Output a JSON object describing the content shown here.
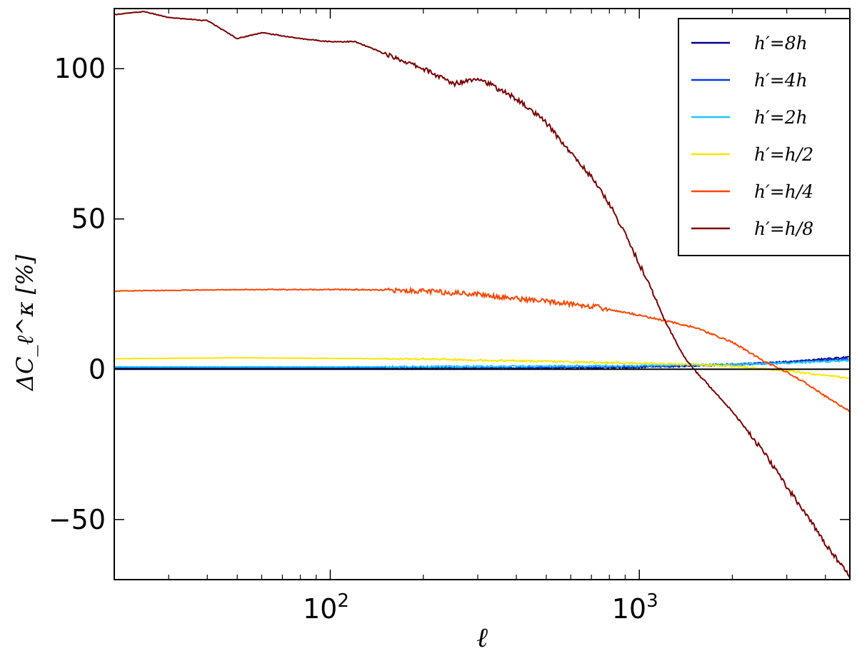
{
  "chart_data": {
    "type": "line",
    "xlabel": "ℓ",
    "ylabel": "ΔC_ℓ^κ [%]",
    "x_scale": "log",
    "xlim": [
      20,
      4800
    ],
    "ylim": [
      -70,
      120
    ],
    "x_ticks": [
      {
        "value": 100,
        "label": "10",
        "exp": "2"
      },
      {
        "value": 1000,
        "label": "10",
        "exp": "3"
      }
    ],
    "y_ticks": [
      {
        "value": -50,
        "label": "−50"
      },
      {
        "value": 0,
        "label": "0"
      },
      {
        "value": 50,
        "label": "50"
      },
      {
        "value": 100,
        "label": "100"
      }
    ],
    "legend_position": "top-right",
    "reference_line": {
      "y": 0,
      "color": "#000000"
    },
    "series": [
      {
        "name": "h′=8h",
        "color": "#00008b",
        "points": [
          [
            20,
            0.2
          ],
          [
            100,
            0.2
          ],
          [
            500,
            0.4
          ],
          [
            1000,
            0.7
          ],
          [
            2000,
            1.5
          ],
          [
            3000,
            2.4
          ],
          [
            4000,
            3.4
          ],
          [
            4800,
            4.0
          ]
        ]
      },
      {
        "name": "h′=4h",
        "color": "#0a37f0",
        "points": [
          [
            20,
            0.4
          ],
          [
            100,
            0.4
          ],
          [
            500,
            0.6
          ],
          [
            1000,
            0.9
          ],
          [
            2000,
            1.6
          ],
          [
            3000,
            2.3
          ],
          [
            4000,
            3.0
          ],
          [
            4800,
            3.5
          ]
        ]
      },
      {
        "name": "h′=2h",
        "color": "#1ec8f0",
        "points": [
          [
            20,
            0.8
          ],
          [
            100,
            0.8
          ],
          [
            500,
            1.0
          ],
          [
            1000,
            1.2
          ],
          [
            2000,
            1.6
          ],
          [
            3000,
            2.1
          ],
          [
            4000,
            2.6
          ],
          [
            4800,
            3.0
          ]
        ]
      },
      {
        "name": "h′=h/2",
        "color": "#ffe600",
        "points": [
          [
            20,
            3.5
          ],
          [
            50,
            3.8
          ],
          [
            100,
            3.6
          ],
          [
            200,
            3.4
          ],
          [
            500,
            2.6
          ],
          [
            1000,
            2.0
          ],
          [
            1500,
            1.6
          ],
          [
            2000,
            1.0
          ],
          [
            3000,
            -0.5
          ],
          [
            4000,
            -2.0
          ],
          [
            4800,
            -3.0
          ]
        ]
      },
      {
        "name": "h′=h/4",
        "color": "#ff4500",
        "points": [
          [
            20,
            26
          ],
          [
            50,
            26.5
          ],
          [
            80,
            26.5
          ],
          [
            120,
            26.5
          ],
          [
            200,
            26
          ],
          [
            300,
            25
          ],
          [
            400,
            23.5
          ],
          [
            500,
            22.5
          ],
          [
            700,
            21
          ],
          [
            1000,
            18
          ],
          [
            1500,
            14
          ],
          [
            2000,
            9
          ],
          [
            2500,
            3
          ],
          [
            3000,
            -1
          ],
          [
            3500,
            -5
          ],
          [
            4000,
            -9
          ],
          [
            4800,
            -14
          ]
        ]
      },
      {
        "name": "h′=h/8",
        "color": "#7a0000",
        "points": [
          [
            20,
            118
          ],
          [
            25,
            119
          ],
          [
            30,
            117
          ],
          [
            40,
            116
          ],
          [
            50,
            110
          ],
          [
            60,
            112
          ],
          [
            80,
            110
          ],
          [
            100,
            109
          ],
          [
            120,
            109
          ],
          [
            150,
            105
          ],
          [
            200,
            100
          ],
          [
            250,
            95
          ],
          [
            300,
            97
          ],
          [
            400,
            90
          ],
          [
            500,
            82
          ],
          [
            600,
            72
          ],
          [
            700,
            64
          ],
          [
            800,
            55
          ],
          [
            900,
            45
          ],
          [
            1000,
            35
          ],
          [
            1100,
            26
          ],
          [
            1200,
            17
          ],
          [
            1300,
            10
          ],
          [
            1400,
            4
          ],
          [
            1500,
            0
          ],
          [
            1700,
            -6
          ],
          [
            2000,
            -14
          ],
          [
            2500,
            -27
          ],
          [
            3000,
            -39
          ],
          [
            3500,
            -49
          ],
          [
            4000,
            -58
          ],
          [
            4800,
            -69
          ]
        ]
      }
    ]
  }
}
